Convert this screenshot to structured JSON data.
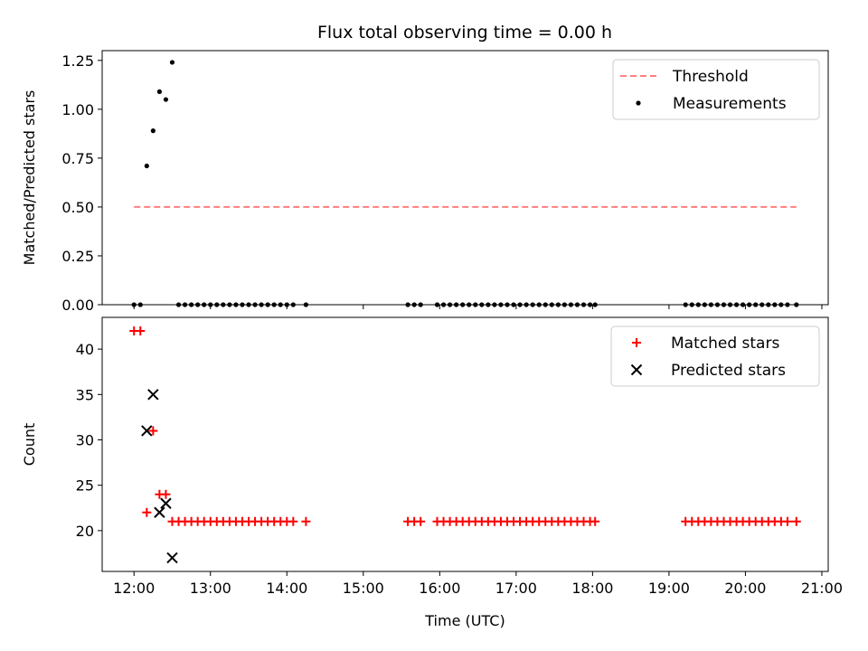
{
  "figure_title": "Flux total observing time = 0.00 h",
  "chart_data": [
    {
      "type": "scatter",
      "ylabel": "Matched/Predicted stars",
      "xlabel": "",
      "xlim": [
        "11:35",
        "21:05"
      ],
      "ylim": [
        0,
        1.3
      ],
      "x_ticks": [
        "12:00",
        "13:00",
        "14:00",
        "15:00",
        "16:00",
        "17:00",
        "18:00",
        "19:00",
        "20:00",
        "21:00"
      ],
      "y_ticks": [
        "0.00",
        "0.25",
        "0.50",
        "0.75",
        "1.00",
        "1.25"
      ],
      "legend_position": "upper right",
      "legend": [
        {
          "label": "Threshold",
          "style": "dashed-line",
          "color": "#ff7f7f"
        },
        {
          "label": "Measurements",
          "style": "dot",
          "color": "#000000"
        }
      ],
      "threshold": {
        "name": "Threshold",
        "y": 0.5,
        "x_start": "12:00",
        "x_end": "20:40",
        "color": "#ff7f7f"
      },
      "series": [
        {
          "name": "Measurements",
          "color": "#000000",
          "points": [
            {
              "x": "12:00",
              "y": 0
            },
            {
              "x": "12:05",
              "y": 0
            },
            {
              "x": "12:10",
              "y": 0.71
            },
            {
              "x": "12:15",
              "y": 0.89
            },
            {
              "x": "12:20",
              "y": 1.09
            },
            {
              "x": "12:25",
              "y": 1.05
            },
            {
              "x": "12:30",
              "y": 1.24
            },
            {
              "x": "12:35",
              "y": 0
            },
            {
              "x": "12:40",
              "y": 0
            },
            {
              "x": "12:45",
              "y": 0
            },
            {
              "x": "12:50",
              "y": 0
            },
            {
              "x": "12:55",
              "y": 0
            },
            {
              "x": "13:00",
              "y": 0
            },
            {
              "x": "13:05",
              "y": 0
            },
            {
              "x": "13:10",
              "y": 0
            },
            {
              "x": "13:15",
              "y": 0
            },
            {
              "x": "13:20",
              "y": 0
            },
            {
              "x": "13:25",
              "y": 0
            },
            {
              "x": "13:30",
              "y": 0
            },
            {
              "x": "13:35",
              "y": 0
            },
            {
              "x": "13:40",
              "y": 0
            },
            {
              "x": "13:45",
              "y": 0
            },
            {
              "x": "13:50",
              "y": 0
            },
            {
              "x": "13:55",
              "y": 0
            },
            {
              "x": "14:00",
              "y": 0
            },
            {
              "x": "14:05",
              "y": 0
            },
            {
              "x": "14:15",
              "y": 0
            },
            {
              "x": "15:35",
              "y": 0
            },
            {
              "x": "15:40",
              "y": 0
            },
            {
              "x": "15:45",
              "y": 0
            },
            {
              "x": "15:58",
              "y": 0
            },
            {
              "x": "16:03",
              "y": 0
            },
            {
              "x": "16:08",
              "y": 0
            },
            {
              "x": "16:13",
              "y": 0
            },
            {
              "x": "16:18",
              "y": 0
            },
            {
              "x": "16:23",
              "y": 0
            },
            {
              "x": "16:28",
              "y": 0
            },
            {
              "x": "16:33",
              "y": 0
            },
            {
              "x": "16:38",
              "y": 0
            },
            {
              "x": "16:43",
              "y": 0
            },
            {
              "x": "16:48",
              "y": 0
            },
            {
              "x": "16:53",
              "y": 0
            },
            {
              "x": "16:58",
              "y": 0
            },
            {
              "x": "17:03",
              "y": 0
            },
            {
              "x": "17:08",
              "y": 0
            },
            {
              "x": "17:13",
              "y": 0
            },
            {
              "x": "17:18",
              "y": 0
            },
            {
              "x": "17:23",
              "y": 0
            },
            {
              "x": "17:28",
              "y": 0
            },
            {
              "x": "17:33",
              "y": 0
            },
            {
              "x": "17:38",
              "y": 0
            },
            {
              "x": "17:43",
              "y": 0
            },
            {
              "x": "17:48",
              "y": 0
            },
            {
              "x": "17:53",
              "y": 0
            },
            {
              "x": "17:58",
              "y": 0
            },
            {
              "x": "18:02",
              "y": 0
            },
            {
              "x": "19:13",
              "y": 0
            },
            {
              "x": "19:18",
              "y": 0
            },
            {
              "x": "19:23",
              "y": 0
            },
            {
              "x": "19:28",
              "y": 0
            },
            {
              "x": "19:33",
              "y": 0
            },
            {
              "x": "19:38",
              "y": 0
            },
            {
              "x": "19:43",
              "y": 0
            },
            {
              "x": "19:48",
              "y": 0
            },
            {
              "x": "19:53",
              "y": 0
            },
            {
              "x": "19:58",
              "y": 0
            },
            {
              "x": "20:03",
              "y": 0
            },
            {
              "x": "20:08",
              "y": 0
            },
            {
              "x": "20:13",
              "y": 0
            },
            {
              "x": "20:18",
              "y": 0
            },
            {
              "x": "20:23",
              "y": 0
            },
            {
              "x": "20:28",
              "y": 0
            },
            {
              "x": "20:33",
              "y": 0
            },
            {
              "x": "20:40",
              "y": 0
            }
          ]
        }
      ]
    },
    {
      "type": "scatter",
      "ylabel": "Count",
      "xlabel": "Time (UTC)",
      "xlim": [
        "11:35",
        "21:05"
      ],
      "ylim": [
        15.5,
        43.5
      ],
      "x_ticks": [
        "12:00",
        "13:00",
        "14:00",
        "15:00",
        "16:00",
        "17:00",
        "18:00",
        "19:00",
        "20:00",
        "21:00"
      ],
      "y_ticks": [
        "20",
        "25",
        "30",
        "35",
        "40"
      ],
      "legend_position": "upper right",
      "legend": [
        {
          "label": "Matched stars",
          "style": "plus",
          "color": "#ff0000"
        },
        {
          "label": "Predicted stars",
          "style": "x",
          "color": "#000000"
        }
      ],
      "series": [
        {
          "name": "Matched stars",
          "marker": "plus",
          "color": "#ff0000",
          "points": [
            {
              "x": "12:00",
              "y": 42
            },
            {
              "x": "12:05",
              "y": 42
            },
            {
              "x": "12:10",
              "y": 22
            },
            {
              "x": "12:15",
              "y": 31
            },
            {
              "x": "12:20",
              "y": 24
            },
            {
              "x": "12:25",
              "y": 24
            },
            {
              "x": "12:30",
              "y": 21
            },
            {
              "x": "12:35",
              "y": 21
            },
            {
              "x": "12:40",
              "y": 21
            },
            {
              "x": "12:45",
              "y": 21
            },
            {
              "x": "12:50",
              "y": 21
            },
            {
              "x": "12:55",
              "y": 21
            },
            {
              "x": "13:00",
              "y": 21
            },
            {
              "x": "13:05",
              "y": 21
            },
            {
              "x": "13:10",
              "y": 21
            },
            {
              "x": "13:15",
              "y": 21
            },
            {
              "x": "13:20",
              "y": 21
            },
            {
              "x": "13:25",
              "y": 21
            },
            {
              "x": "13:30",
              "y": 21
            },
            {
              "x": "13:35",
              "y": 21
            },
            {
              "x": "13:40",
              "y": 21
            },
            {
              "x": "13:45",
              "y": 21
            },
            {
              "x": "13:50",
              "y": 21
            },
            {
              "x": "13:55",
              "y": 21
            },
            {
              "x": "14:00",
              "y": 21
            },
            {
              "x": "14:05",
              "y": 21
            },
            {
              "x": "14:15",
              "y": 21
            },
            {
              "x": "15:35",
              "y": 21
            },
            {
              "x": "15:40",
              "y": 21
            },
            {
              "x": "15:45",
              "y": 21
            },
            {
              "x": "15:58",
              "y": 21
            },
            {
              "x": "16:03",
              "y": 21
            },
            {
              "x": "16:08",
              "y": 21
            },
            {
              "x": "16:13",
              "y": 21
            },
            {
              "x": "16:18",
              "y": 21
            },
            {
              "x": "16:23",
              "y": 21
            },
            {
              "x": "16:28",
              "y": 21
            },
            {
              "x": "16:33",
              "y": 21
            },
            {
              "x": "16:38",
              "y": 21
            },
            {
              "x": "16:43",
              "y": 21
            },
            {
              "x": "16:48",
              "y": 21
            },
            {
              "x": "16:53",
              "y": 21
            },
            {
              "x": "16:58",
              "y": 21
            },
            {
              "x": "17:03",
              "y": 21
            },
            {
              "x": "17:08",
              "y": 21
            },
            {
              "x": "17:13",
              "y": 21
            },
            {
              "x": "17:18",
              "y": 21
            },
            {
              "x": "17:23",
              "y": 21
            },
            {
              "x": "17:28",
              "y": 21
            },
            {
              "x": "17:33",
              "y": 21
            },
            {
              "x": "17:38",
              "y": 21
            },
            {
              "x": "17:43",
              "y": 21
            },
            {
              "x": "17:48",
              "y": 21
            },
            {
              "x": "17:53",
              "y": 21
            },
            {
              "x": "17:58",
              "y": 21
            },
            {
              "x": "18:02",
              "y": 21
            },
            {
              "x": "19:13",
              "y": 21
            },
            {
              "x": "19:18",
              "y": 21
            },
            {
              "x": "19:23",
              "y": 21
            },
            {
              "x": "19:28",
              "y": 21
            },
            {
              "x": "19:33",
              "y": 21
            },
            {
              "x": "19:38",
              "y": 21
            },
            {
              "x": "19:43",
              "y": 21
            },
            {
              "x": "19:48",
              "y": 21
            },
            {
              "x": "19:53",
              "y": 21
            },
            {
              "x": "19:58",
              "y": 21
            },
            {
              "x": "20:03",
              "y": 21
            },
            {
              "x": "20:08",
              "y": 21
            },
            {
              "x": "20:13",
              "y": 21
            },
            {
              "x": "20:18",
              "y": 21
            },
            {
              "x": "20:23",
              "y": 21
            },
            {
              "x": "20:28",
              "y": 21
            },
            {
              "x": "20:33",
              "y": 21
            },
            {
              "x": "20:40",
              "y": 21
            }
          ]
        },
        {
          "name": "Predicted stars",
          "marker": "x",
          "color": "#000000",
          "points": [
            {
              "x": "12:10",
              "y": 31
            },
            {
              "x": "12:15",
              "y": 35
            },
            {
              "x": "12:20",
              "y": 22
            },
            {
              "x": "12:25",
              "y": 23
            },
            {
              "x": "12:30",
              "y": 17
            }
          ]
        }
      ]
    }
  ]
}
